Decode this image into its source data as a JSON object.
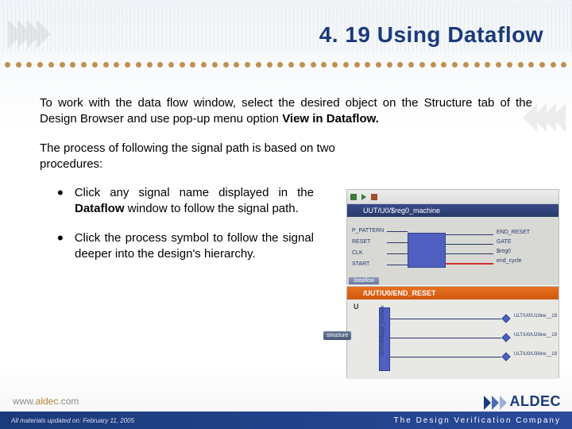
{
  "title": "4. 19  Using Dataflow",
  "para1_a": "To work with the data flow window, select the desired object on the Structure tab of the Design Browser and use pop-up menu option ",
  "para1_b": "View in Dataflow.",
  "para2": "The process of following the signal path is based on two procedures:",
  "bullet1_a": "Click any signal name displayed in the ",
  "bullet1_b": "Dataflow",
  "bullet1_c": " window to follow the signal path.",
  "bullet2": "Click the process symbol to follow the signal deeper into the design's hierarchy.",
  "panel1": {
    "header": "UUT/U0/$reg0_machine",
    "in_labels": [
      "P_PATTERN",
      "RESET",
      "CLK",
      "START"
    ],
    "out_labels": [
      "END_RESET",
      "GATE",
      "$reg0",
      "end_cycle"
    ]
  },
  "panel2": {
    "header": "/UUT/U0/END_RESET",
    "tabs": [
      "dataflow",
      "structure"
    ],
    "u": "U",
    "fanouts": [
      "ULT/U0/U1/line__19",
      "ULT/U0/U2/line__19",
      "ULT/U0/U3/line__19"
    ],
    "bus_lbl": "UUT/U0/$reg0_machine"
  },
  "footer": {
    "url_a": "www.",
    "url_b": "aldec",
    "url_c": ".com",
    "date": "All materials updated on: February 11, 2005",
    "tagline": "The Design Verification Company",
    "logo": "ALDEC"
  },
  "colors": {
    "title": "#1a3a7a",
    "dots": "#c09050",
    "footer_bg": "#1a3a7a",
    "block": "#5060c0"
  }
}
